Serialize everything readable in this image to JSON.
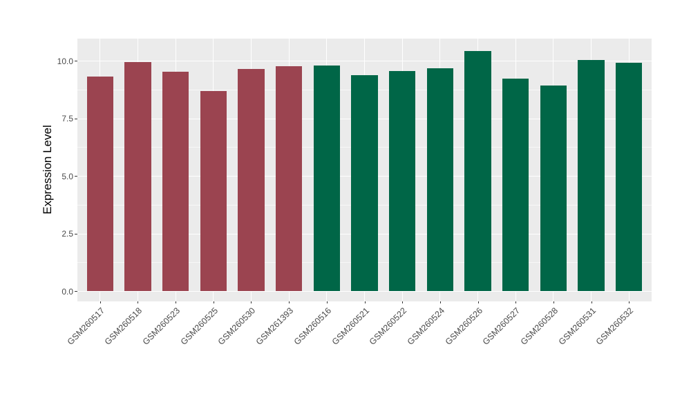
{
  "chart_data": {
    "type": "bar",
    "title": "",
    "xlabel": "",
    "ylabel": "Expression Level",
    "categories": [
      "GSM260517",
      "GSM260518",
      "GSM260523",
      "GSM260525",
      "GSM260530",
      "GSM261393",
      "GSM260516",
      "GSM260521",
      "GSM260522",
      "GSM260524",
      "GSM260526",
      "GSM260527",
      "GSM260528",
      "GSM260531",
      "GSM260532"
    ],
    "values": [
      9.33,
      9.95,
      9.54,
      8.69,
      9.65,
      9.78,
      9.81,
      9.39,
      9.56,
      9.69,
      10.42,
      9.23,
      8.94,
      10.04,
      9.92
    ],
    "bar_groups": [
      "maroon",
      "maroon",
      "maroon",
      "maroon",
      "maroon",
      "maroon",
      "green",
      "green",
      "green",
      "green",
      "green",
      "green",
      "green",
      "green",
      "green"
    ],
    "group_colors": {
      "maroon": "#9B4450",
      "green": "#006647"
    },
    "ytick_labels": [
      "0.0",
      "2.5",
      "5.0",
      "7.5",
      "10.0"
    ],
    "ytick_values": [
      0,
      2.5,
      5,
      7.5,
      10
    ],
    "ylim": [
      0,
      10.97
    ],
    "grid": "white major gridlines on gray panel; horizontal minors between majors; verticals at category centers",
    "legend_position": "none",
    "panel_bg": "#EBEBEB",
    "x_label_angle_deg": 45
  }
}
